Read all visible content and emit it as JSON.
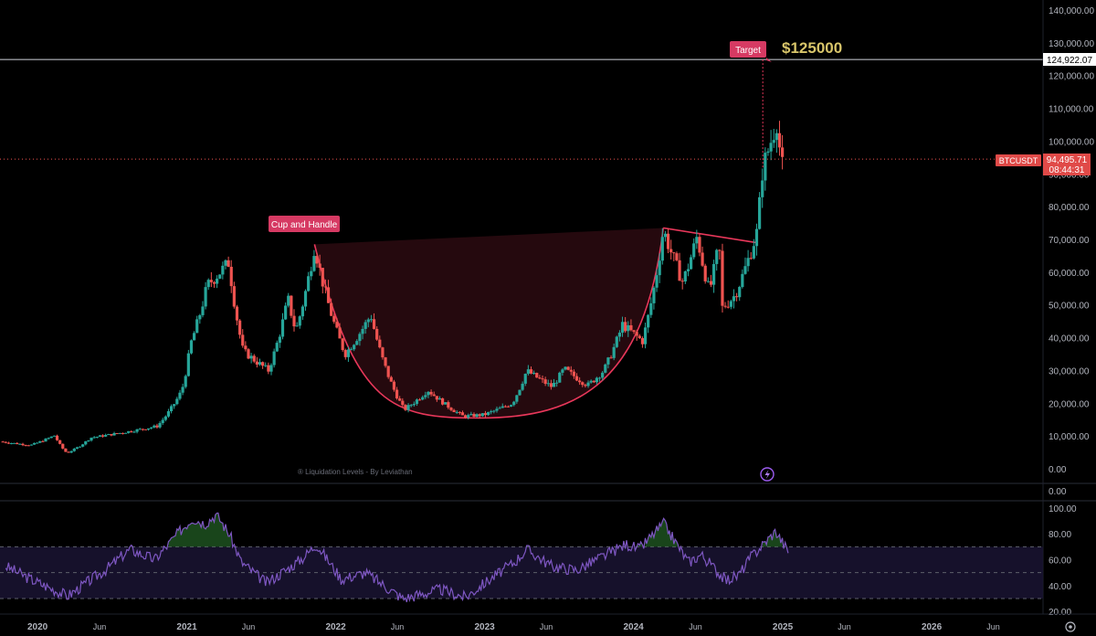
{
  "colors": {
    "background": "#000000",
    "up": "#26a69a",
    "down": "#ef5350",
    "pattern": "#e8375a",
    "target_text": "#d8c56a",
    "rsi_line": "#7e57c2",
    "axis_text": "#b2b5be"
  },
  "annotations": {
    "pattern_label": "Cup and Handle",
    "target_label": "Target",
    "target_value": "$125000",
    "indicator_credit": "® Liquidation Levels - By Leviathan",
    "symbol": "BTCUSDT",
    "last_price": "94,495.71",
    "countdown": "08:44:31",
    "target_price_label": "124,922.07",
    "lightning_icon": "lightning-icon",
    "settings_icon": "gear-icon"
  },
  "chart_data": [
    {
      "type": "candlestick",
      "title": "",
      "interval": "weekly",
      "xlim": [
        "2019-10-01",
        "2026-10-01"
      ],
      "ylim": [
        -2000,
        145000
      ],
      "y_ticks": [
        "140,000.00",
        "130,000.00",
        "120,000.00",
        "110,000.00",
        "100,000.00",
        "90,000.00",
        "80,000.00",
        "70,000.00",
        "60,000.00",
        "50,000.00",
        "40,000.00",
        "30,000.00",
        "20,000.00",
        "10,000.00",
        "0.00"
      ],
      "y_tick_values": [
        140000,
        130000,
        120000,
        110000,
        100000,
        90000,
        80000,
        70000,
        60000,
        50000,
        40000,
        30000,
        20000,
        10000,
        0
      ],
      "x_ticks": [
        "2020",
        "Jun",
        "2021",
        "Jun",
        "2022",
        "Jun",
        "2023",
        "Jun",
        "2024",
        "Jun",
        "2025",
        "Jun",
        "2026",
        "Jun"
      ],
      "x_tick_dates": [
        "2020-01-01",
        "2020-06-01",
        "2021-01-01",
        "2021-06-01",
        "2022-01-01",
        "2022-06-01",
        "2023-01-01",
        "2023-06-01",
        "2024-01-01",
        "2024-06-01",
        "2025-01-01",
        "2025-06-01",
        "2026-01-01",
        "2026-06-01"
      ],
      "price_anchors": [
        [
          "2019-10-01",
          8300
        ],
        [
          "2019-12-15",
          7200
        ],
        [
          "2020-02-12",
          10200
        ],
        [
          "2020-03-13",
          4800
        ],
        [
          "2020-05-10",
          9500
        ],
        [
          "2020-07-25",
          11000
        ],
        [
          "2020-10-20",
          13000
        ],
        [
          "2020-12-20",
          24000
        ],
        [
          "2021-01-10",
          38000
        ],
        [
          "2021-02-20",
          56000
        ],
        [
          "2021-04-14",
          63000
        ],
        [
          "2021-05-19",
          36000
        ],
        [
          "2021-07-20",
          30000
        ],
        [
          "2021-09-06",
          52000
        ],
        [
          "2021-09-25",
          42000
        ],
        [
          "2021-11-10",
          68000
        ],
        [
          "2022-01-24",
          35000
        ],
        [
          "2022-03-28",
          47000
        ],
        [
          "2022-06-18",
          18000
        ],
        [
          "2022-08-15",
          24000
        ],
        [
          "2022-11-10",
          16000
        ],
        [
          "2022-12-31",
          16500
        ],
        [
          "2023-03-10",
          20000
        ],
        [
          "2023-04-14",
          30000
        ],
        [
          "2023-06-15",
          25000
        ],
        [
          "2023-07-15",
          30500
        ],
        [
          "2023-09-11",
          25500
        ],
        [
          "2023-10-20",
          30000
        ],
        [
          "2023-12-05",
          44000
        ],
        [
          "2024-01-23",
          39000
        ],
        [
          "2024-03-14",
          73000
        ],
        [
          "2024-05-01",
          57000
        ],
        [
          "2024-06-05",
          71000
        ],
        [
          "2024-07-05",
          54000
        ],
        [
          "2024-07-29",
          69000
        ],
        [
          "2024-08-05",
          49000
        ],
        [
          "2024-09-06",
          53000
        ],
        [
          "2024-10-29",
          72000
        ],
        [
          "2024-11-13",
          92000
        ],
        [
          "2024-12-17",
          106000
        ],
        [
          "2024-12-30",
          92000
        ],
        [
          "2025-01-06",
          94495.71
        ]
      ],
      "cup_and_handle": {
        "left_rim": [
          "2021-11-10",
          68500
        ],
        "bottom": [
          "2022-12-20",
          15500
        ],
        "right_rim": [
          "2024-03-14",
          73500
        ],
        "handle_end": [
          "2024-10-29",
          69000
        ]
      },
      "target_line": 124922.07,
      "last_price_line": 94495.71
    },
    {
      "type": "line",
      "title": "",
      "indicator": "RSI",
      "ylim": [
        18,
        102
      ],
      "y_ticks": [
        "100.00",
        "80.00",
        "60.00",
        "40.00",
        "20.00"
      ],
      "y_tick_values": [
        100,
        80,
        60,
        40,
        20
      ],
      "bands": [
        70,
        50,
        30
      ],
      "x": [
        "2019-10",
        "2019-12",
        "2020-03",
        "2020-06",
        "2020-08",
        "2020-10",
        "2020-12",
        "2021-01",
        "2021-02",
        "2021-03",
        "2021-04",
        "2021-05",
        "2021-07",
        "2021-09",
        "2021-10",
        "2021-11",
        "2022-01",
        "2022-03",
        "2022-06",
        "2022-09",
        "2022-11",
        "2023-01",
        "2023-03",
        "2023-04",
        "2023-06",
        "2023-08",
        "2023-10",
        "2023-12",
        "2024-01",
        "2024-03",
        "2024-05",
        "2024-06",
        "2024-08",
        "2024-09",
        "2024-10",
        "2024-12",
        "2025-01"
      ],
      "values": [
        55,
        45,
        32,
        52,
        68,
        60,
        82,
        92,
        88,
        95,
        80,
        58,
        42,
        55,
        62,
        72,
        45,
        50,
        30,
        37,
        31,
        45,
        58,
        68,
        55,
        52,
        62,
        72,
        68,
        88,
        58,
        64,
        44,
        48,
        62,
        82,
        66
      ]
    }
  ]
}
